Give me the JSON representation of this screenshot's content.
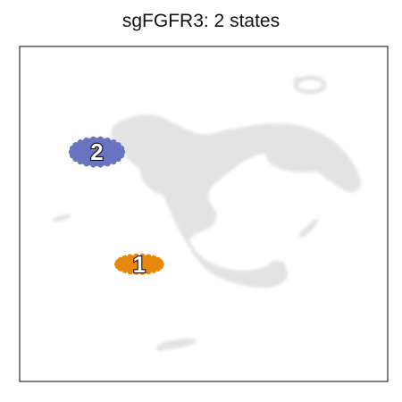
{
  "chart_data": {
    "type": "scatter",
    "title": "sgFGFR3: 2 states",
    "xlabel": "",
    "ylabel": "",
    "ticks": false,
    "background_color": "#e3e3e3",
    "states": [
      {
        "label": "1",
        "color": "#e8870e",
        "x": 0.325,
        "y": 0.35
      },
      {
        "label": "2",
        "color": "#6874bf",
        "x": 0.21,
        "y": 0.685
      }
    ]
  }
}
